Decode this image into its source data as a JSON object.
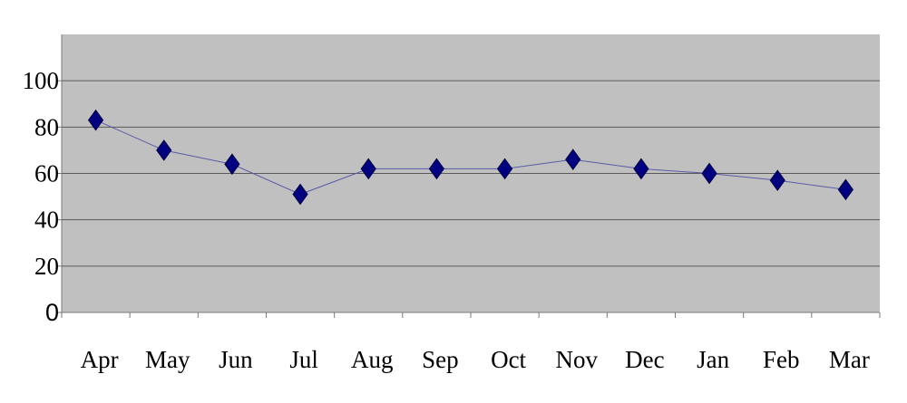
{
  "chart_data": {
    "type": "line",
    "categories": [
      "Apr",
      "May",
      "Jun",
      "Jul",
      "Aug",
      "Sep",
      "Oct",
      "Nov",
      "Dec",
      "Jan",
      "Feb",
      "Mar"
    ],
    "series": [
      {
        "values": [
          83,
          70,
          64,
          51,
          62,
          62,
          62,
          66,
          62,
          60,
          57,
          53
        ],
        "color": "#000080",
        "marker": "diamond"
      }
    ],
    "ylim": [
      0,
      120
    ],
    "yticks": [
      0,
      20,
      40,
      60,
      80,
      100
    ],
    "ytick_labels": [
      "0",
      "20",
      "40",
      "60",
      "80",
      "100"
    ],
    "grid": true,
    "legend": "none",
    "plot_background": "#c0c0c0",
    "line_color": "#5a5aa8"
  }
}
